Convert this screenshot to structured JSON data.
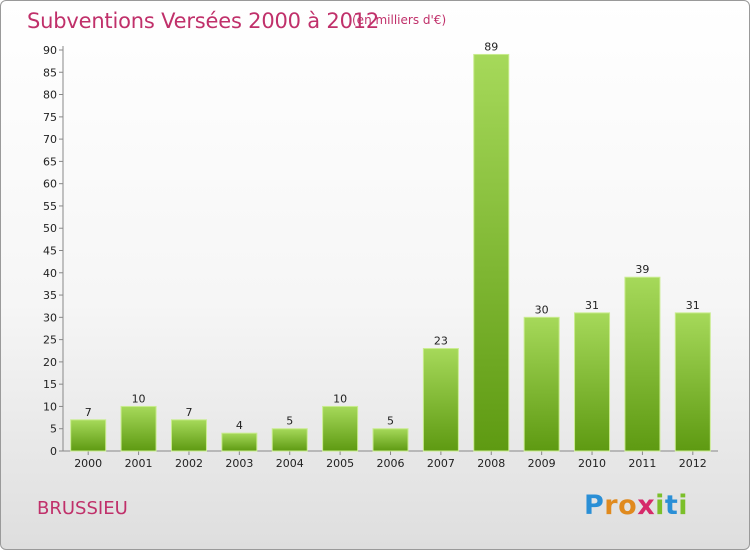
{
  "chart_data": {
    "type": "bar",
    "title": "Subventions Versées 2000 à 2012",
    "subtitle": "(en milliers d'€)",
    "categories": [
      "2000",
      "2001",
      "2002",
      "2003",
      "2004",
      "2005",
      "2006",
      "2007",
      "2008",
      "2009",
      "2010",
      "2011",
      "2012"
    ],
    "values": [
      7,
      10,
      7,
      4,
      5,
      10,
      5,
      23,
      89,
      30,
      31,
      39,
      31
    ],
    "ylim": [
      0,
      90
    ],
    "yticks": [
      0,
      5,
      10,
      15,
      20,
      25,
      30,
      35,
      40,
      45,
      50,
      55,
      60,
      65,
      70,
      75,
      80,
      85,
      90
    ],
    "grid": false,
    "colors": {
      "bar_top": "#a6d95a",
      "bar_bottom": "#5e9a12",
      "bar_edge": "#c9ec8f"
    }
  },
  "commune": "BRUSSIEU",
  "brand": {
    "letters": [
      "P",
      "r",
      "o",
      "x",
      "i",
      "t",
      "i"
    ],
    "colors": [
      "#2a8fd6",
      "#e08a1e",
      "#e08a1e",
      "#d62a6a",
      "#7bbf2a",
      "#2a8fd6",
      "#7bbf2a"
    ]
  }
}
